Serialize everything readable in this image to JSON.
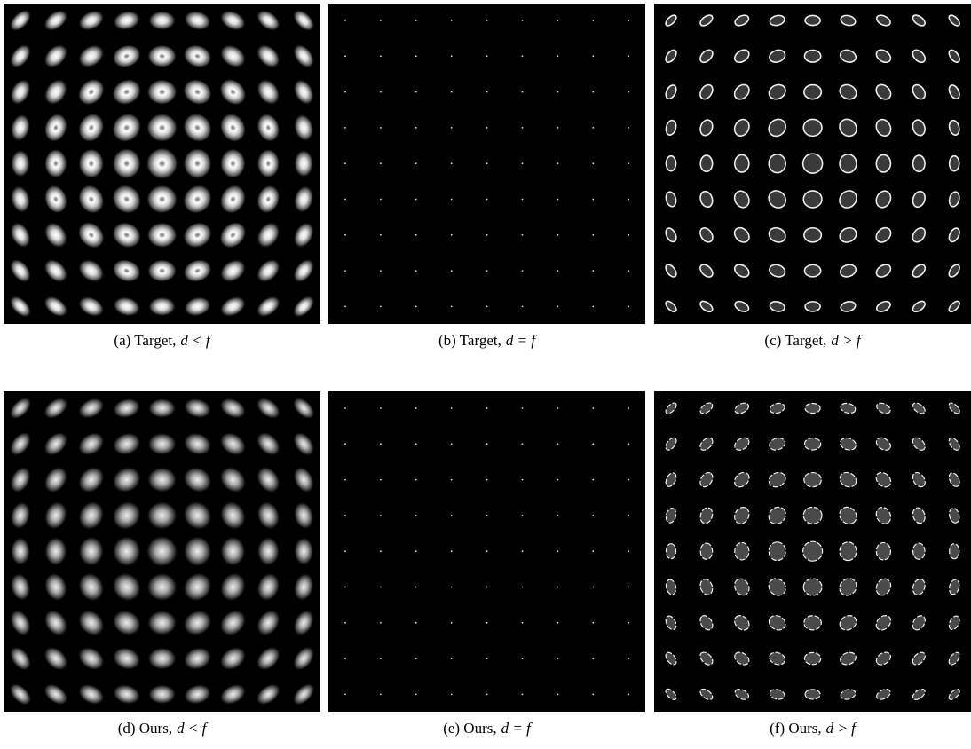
{
  "figure": {
    "panels": [
      {
        "label": "(a) Target,",
        "math": "d < f"
      },
      {
        "label": "(b) Target,",
        "math": "d = f"
      },
      {
        "label": "(c) Target,",
        "math": "d > f"
      },
      {
        "label": "(d) Ours,",
        "math": "d < f"
      },
      {
        "label": "(e) Ours,",
        "math": "d = f"
      },
      {
        "label": "(f) Ours,",
        "math": "d > f"
      }
    ]
  }
}
